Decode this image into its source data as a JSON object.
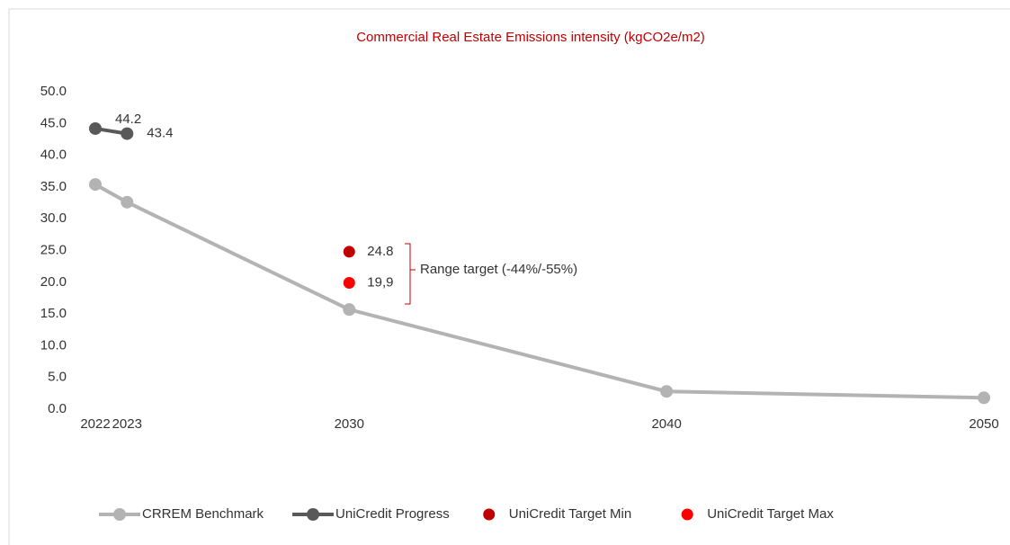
{
  "chart_data": {
    "type": "line",
    "title": "Commercial Real Estate Emissions intensity (kgCO2e/m2)",
    "xlim": [
      2022,
      2050
    ],
    "xticks": [
      2022,
      2023,
      2030,
      2040,
      2050
    ],
    "ylim": [
      0,
      50
    ],
    "yticks": [
      {
        "value": 0,
        "label": "0.0"
      },
      {
        "value": 5,
        "label": "5.0"
      },
      {
        "value": 10,
        "label": "10.0"
      },
      {
        "value": 15,
        "label": "15.0"
      },
      {
        "value": 20,
        "label": "20.0"
      },
      {
        "value": 25,
        "label": "25.0"
      },
      {
        "value": 30,
        "label": "30.0"
      },
      {
        "value": 35,
        "label": "35.0"
      },
      {
        "value": 40,
        "label": "40.0"
      },
      {
        "value": 45,
        "label": "45.0"
      },
      {
        "value": 50,
        "label": "50.0"
      }
    ],
    "annotation": "Range target (-44%/-55%)",
    "legend": "bottom",
    "series": [
      {
        "name": "CRREM Benchmark",
        "type": "line",
        "color": "#b3b3b3",
        "x": [
          2022,
          2023,
          2030,
          2040,
          2050
        ],
        "values": [
          35.4,
          32.6,
          15.7,
          2.8,
          1.8
        ]
      },
      {
        "name": "UniCredit Progress",
        "type": "line",
        "color": "#595959",
        "x": [
          2022,
          2023
        ],
        "values": [
          44.2,
          43.4
        ],
        "labels": true
      },
      {
        "name": "UniCredit Target Min",
        "type": "scatter",
        "color": "#c00000",
        "x": [
          2030
        ],
        "values": [
          24.8
        ],
        "labels": true
      },
      {
        "name": "UniCredit Target Max",
        "type": "scatter",
        "color": "#ff0000",
        "x": [
          2030
        ],
        "values": [
          19.9
        ],
        "value_labels": [
          "19,9"
        ]
      }
    ]
  }
}
